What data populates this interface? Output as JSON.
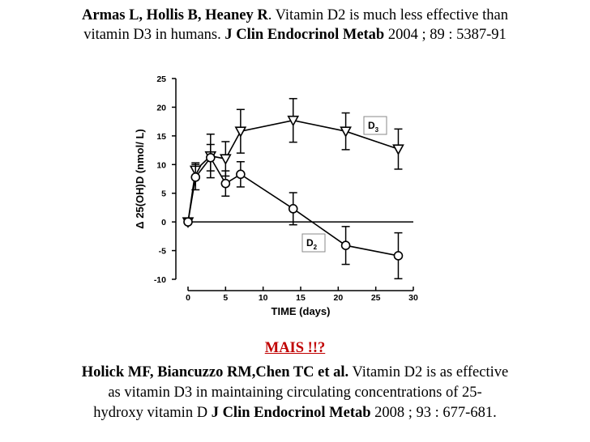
{
  "references": {
    "first": {
      "authors": "Armas L, Hollis  B, Heaney R",
      "title_part1": ". Vitamin D2 is much less effective than",
      "title_part2": "vitamin D3 in humans. ",
      "journal": "J Clin Endocrinol Metab",
      "citation": " 2004 ; 89 : 5387-91"
    },
    "mais": "MAIS !!?",
    "second": {
      "authors": "Holick MF, Biancuzzo RM,Chen TC et al.",
      "title_part1": " Vitamin D2 is as effective",
      "title_part2": "as vitamin D3 in maintaining circulating concentrations of 25-",
      "title_part3": "hydroxy vitamin D ",
      "journal": "J Clin Endocrinol Metab",
      "citation": " 2008 ; 93 : 677-681."
    }
  },
  "chart_data": {
    "type": "line",
    "title": "",
    "xlabel": "TIME (days)",
    "ylabel": "Δ 25(OH)D (nmol/ L)",
    "xlim": [
      0,
      30
    ],
    "ylim": [
      -10,
      25
    ],
    "xticks": [
      0,
      5,
      10,
      15,
      20,
      25,
      30
    ],
    "yticks": [
      -10,
      -5,
      0,
      5,
      10,
      15,
      20,
      25
    ],
    "zero_line": true,
    "series": [
      {
        "name": "D3",
        "label_main": "D",
        "label_sub": "3",
        "marker": "triangle-down",
        "x": [
          0,
          1,
          3,
          5,
          7,
          14,
          21,
          28
        ],
        "y": [
          0,
          9,
          11.5,
          11,
          15.8,
          17.7,
          15.8,
          12.7
        ],
        "err": [
          0,
          1.3,
          3.8,
          3,
          3.8,
          3.8,
          3.2,
          3.5
        ]
      },
      {
        "name": "D2",
        "label_main": "D",
        "label_sub": "2",
        "marker": "circle",
        "x": [
          0,
          1,
          3,
          5,
          7,
          14,
          21,
          28
        ],
        "y": [
          0,
          7.8,
          11.2,
          6.7,
          8.3,
          2.3,
          -4.1,
          -5.9
        ],
        "err": [
          0,
          2.2,
          2.3,
          2.2,
          2.2,
          2.8,
          3.3,
          4
        ]
      }
    ]
  }
}
